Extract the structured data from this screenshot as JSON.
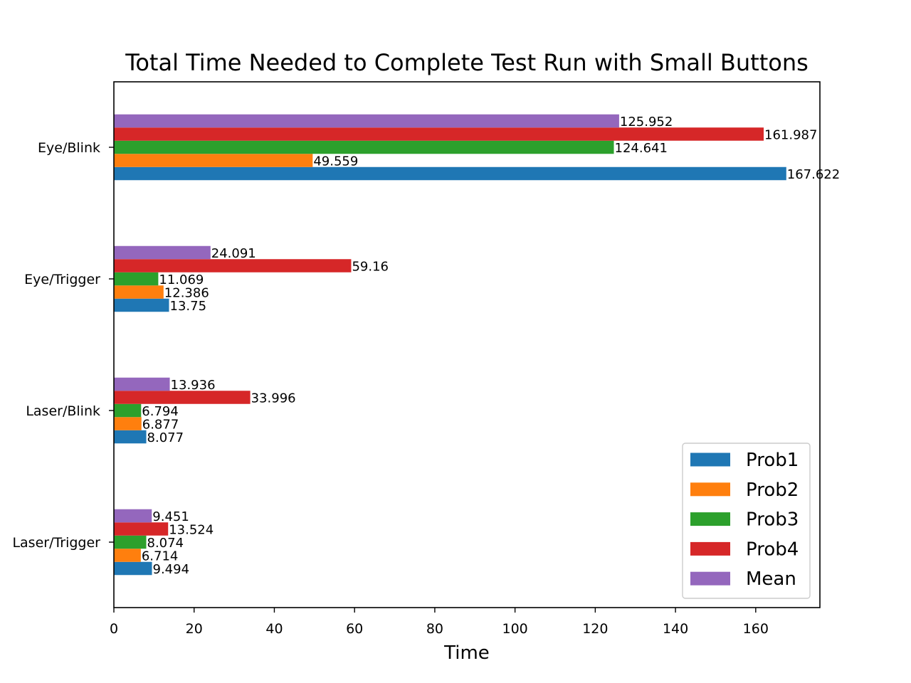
{
  "chart_data": {
    "type": "bar",
    "orientation": "horizontal",
    "title": "Total Time Needed to Complete Test Run with Small Buttons",
    "xlabel": "Time",
    "ylabel": "",
    "categories": [
      "Laser/Trigger",
      "Laser/Blink",
      "Eye/Trigger",
      "Eye/Blink"
    ],
    "series": [
      {
        "name": "Prob1",
        "color": "#1f77b4",
        "values": [
          9.494,
          8.077,
          13.75,
          167.622
        ],
        "labels": [
          "9.494",
          "8.077",
          "13.75",
          "167.622"
        ]
      },
      {
        "name": "Prob2",
        "color": "#ff7f0e",
        "values": [
          6.714,
          6.877,
          12.386,
          49.559
        ],
        "labels": [
          "6.714",
          "6.877",
          "12.386",
          "49.559"
        ]
      },
      {
        "name": "Prob3",
        "color": "#2ca02c",
        "values": [
          8.074,
          6.794,
          11.069,
          124.641
        ],
        "labels": [
          "8.074",
          "6.794",
          "11.069",
          "124.641"
        ]
      },
      {
        "name": "Prob4",
        "color": "#d62728",
        "values": [
          13.524,
          33.996,
          59.16,
          161.987
        ],
        "labels": [
          "13.524",
          "33.996",
          "59.16",
          "161.987"
        ]
      },
      {
        "name": "Mean",
        "color": "#9467bd",
        "values": [
          9.451,
          13.936,
          24.091,
          125.952
        ],
        "labels": [
          "9.451",
          "13.936",
          "24.091",
          "125.952"
        ]
      }
    ],
    "xticks": [
      "0",
      "20",
      "40",
      "60",
      "80",
      "100",
      "120",
      "140",
      "160"
    ],
    "xlim": [
      0,
      176
    ],
    "grid": false,
    "legend_position": "lower-right"
  }
}
